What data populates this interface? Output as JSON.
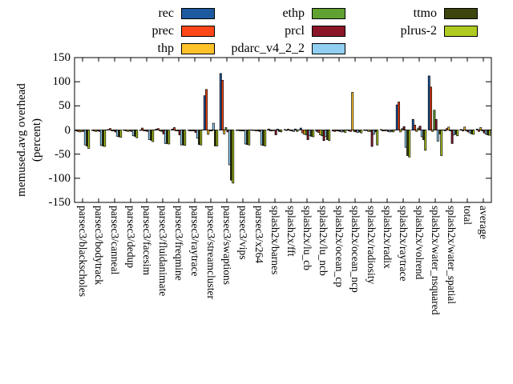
{
  "figure": {
    "ylabel_line1": "memused.avg overhead",
    "ylabel_line2": "(percent)"
  },
  "chart_data": {
    "type": "bar",
    "title": "",
    "xlabel": "",
    "ylabel": "memused.avg overhead (percent)",
    "ylim": [
      -150,
      150
    ],
    "yticks": [
      150,
      100,
      50,
      0,
      -50,
      -100,
      -150
    ],
    "grid": false,
    "zero_line": "dashed",
    "legend_position": "top-outside-3-columns",
    "categories": [
      "parsec3/blackscholes",
      "parsec3/bodytrack",
      "parsec3/canneal",
      "parsec3/dedup",
      "parsec3/facesim",
      "parsec3/fluidanimate",
      "parsec3/freqmine",
      "parsec3/raytrace",
      "parsec3/streamcluster",
      "parsec3/swaptions",
      "parsec3/vips",
      "parsec3/x264",
      "splash2x/barnes",
      "splash2x/fft",
      "splash2x/lu_cb",
      "splash2x/lu_ncb",
      "splash2x/ocean_cp",
      "splash2x/ocean_ncp",
      "splash2x/radiosity",
      "splash2x/radix",
      "splash2x/raytrace",
      "splash2x/volrend",
      "splash2x/water_nsquared",
      "splash2x/water_spatial",
      "total",
      "average"
    ],
    "series": [
      {
        "name": "rec",
        "color": "#1e5aa0",
        "values": [
          -2,
          -1,
          1,
          -1,
          -1,
          2,
          2,
          -1,
          71,
          117,
          0,
          -1,
          2,
          1,
          4,
          -3,
          -2,
          -2,
          -1,
          1,
          52,
          22,
          112,
          -2,
          1,
          2
        ]
      },
      {
        "name": "prec",
        "color": "#ff4719",
        "values": [
          -3,
          -2,
          3,
          -2,
          4,
          3,
          5,
          -2,
          84,
          103,
          -1,
          -1,
          -2,
          -1,
          -6,
          -5,
          -3,
          -3,
          -1,
          -2,
          58,
          10,
          89,
          3,
          -2,
          -3
        ]
      },
      {
        "name": "thp",
        "color": "#ffc22a",
        "values": [
          -4,
          -3,
          -2,
          -3,
          -2,
          -2,
          -2,
          -2,
          -9,
          -8,
          -2,
          -2,
          -2,
          2,
          -9,
          -10,
          -2,
          78,
          -3,
          -2,
          -4,
          -3,
          -3,
          6,
          6,
          5
        ]
      },
      {
        "name": "ethp",
        "color": "#60a232",
        "values": [
          -3,
          -2,
          -2,
          -2,
          -2,
          -3,
          -2,
          -2,
          -2,
          5,
          -2,
          -2,
          -1,
          -1,
          -10,
          -12,
          -2,
          -3,
          -3,
          -1,
          3,
          4,
          41,
          -2,
          -2,
          -2
        ]
      },
      {
        "name": "prcl",
        "color": "#8a1628",
        "values": [
          -3,
          -3,
          -4,
          -3,
          -3,
          -8,
          -10,
          -5,
          -2,
          -4,
          -2,
          -3,
          -10,
          -2,
          -20,
          -22,
          -3,
          -4,
          -34,
          -3,
          7,
          8,
          22,
          -28,
          -4,
          -6
        ]
      },
      {
        "name": "pdarc_v4_2_2",
        "color": "#90cef2",
        "values": [
          -31,
          -32,
          -13,
          -12,
          -20,
          -28,
          -31,
          -17,
          14,
          -72,
          -29,
          -31,
          2,
          -3,
          -12,
          -13,
          -4,
          -5,
          -9,
          -4,
          -36,
          -14,
          -23,
          -10,
          -6,
          -9
        ]
      },
      {
        "name": "ttmo",
        "color": "#3d440d",
        "values": [
          -33,
          -33,
          -14,
          -13,
          -21,
          -28,
          -31,
          -30,
          -33,
          -104,
          -30,
          -32,
          -3,
          2,
          -13,
          -20,
          -3,
          -4,
          -4,
          -3,
          -53,
          -20,
          -8,
          -9,
          -8,
          -10
        ]
      },
      {
        "name": "plrus-2",
        "color": "#b0cb1f",
        "values": [
          -38,
          -34,
          -15,
          -16,
          -24,
          -29,
          -32,
          -31,
          -33,
          -110,
          -31,
          -33,
          -4,
          -3,
          -14,
          -22,
          -5,
          -6,
          -31,
          -4,
          -56,
          -42,
          -53,
          -12,
          -9,
          -11
        ]
      }
    ]
  }
}
